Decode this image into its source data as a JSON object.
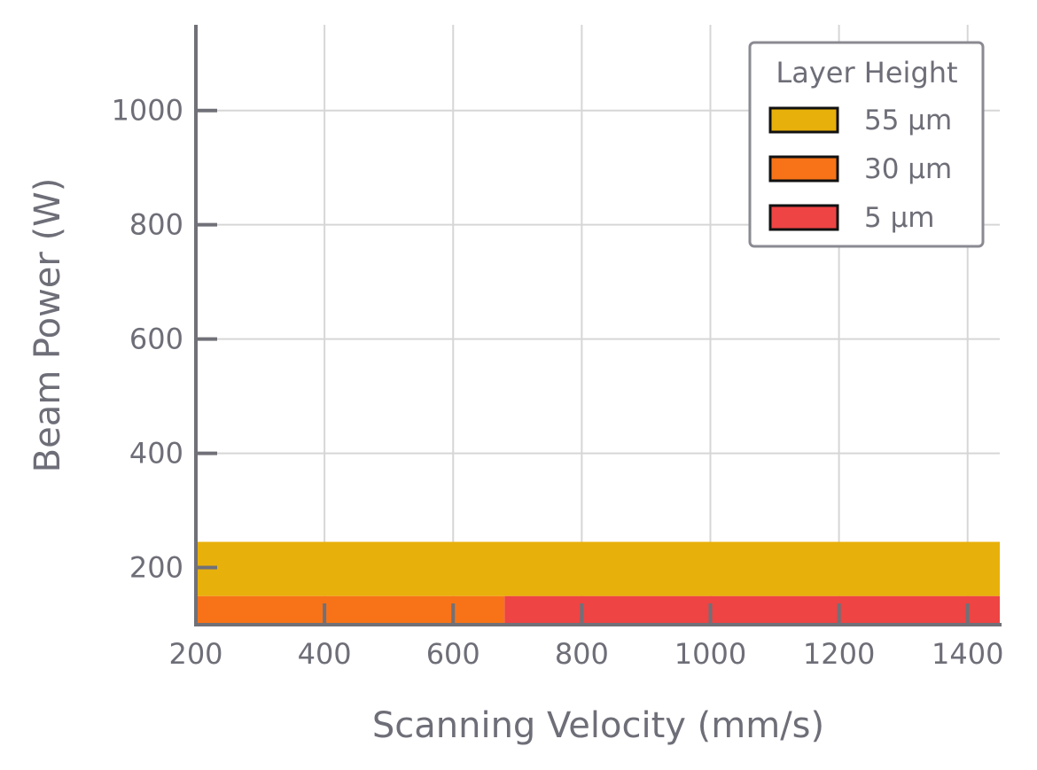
{
  "chart_data": {
    "type": "area",
    "xlabel": "Scanning Velocity (mm/s)",
    "ylabel": "Beam Power (W)",
    "xlim": [
      200,
      1450
    ],
    "ylim": [
      100,
      1150
    ],
    "xticks": [
      200,
      400,
      600,
      800,
      1000,
      1200,
      1400
    ],
    "yticks": [
      200,
      400,
      600,
      800,
      1000
    ],
    "grid": true,
    "legend": {
      "title": "Layer Height",
      "placement": "top-right"
    },
    "series": [
      {
        "name": "55 µm",
        "color": "#E8B00A",
        "regions": [
          {
            "x": [
              200,
              1450
            ],
            "y": [
              150,
              245
            ]
          }
        ]
      },
      {
        "name": "30 µm",
        "color": "#F87318",
        "regions": [
          {
            "x": [
              200,
              680
            ],
            "y": [
              100,
              150
            ]
          }
        ]
      },
      {
        "name": "5 µm",
        "color": "#EE4444",
        "regions": [
          {
            "x": [
              680,
              1450
            ],
            "y": [
              100,
              150
            ]
          }
        ]
      }
    ]
  }
}
